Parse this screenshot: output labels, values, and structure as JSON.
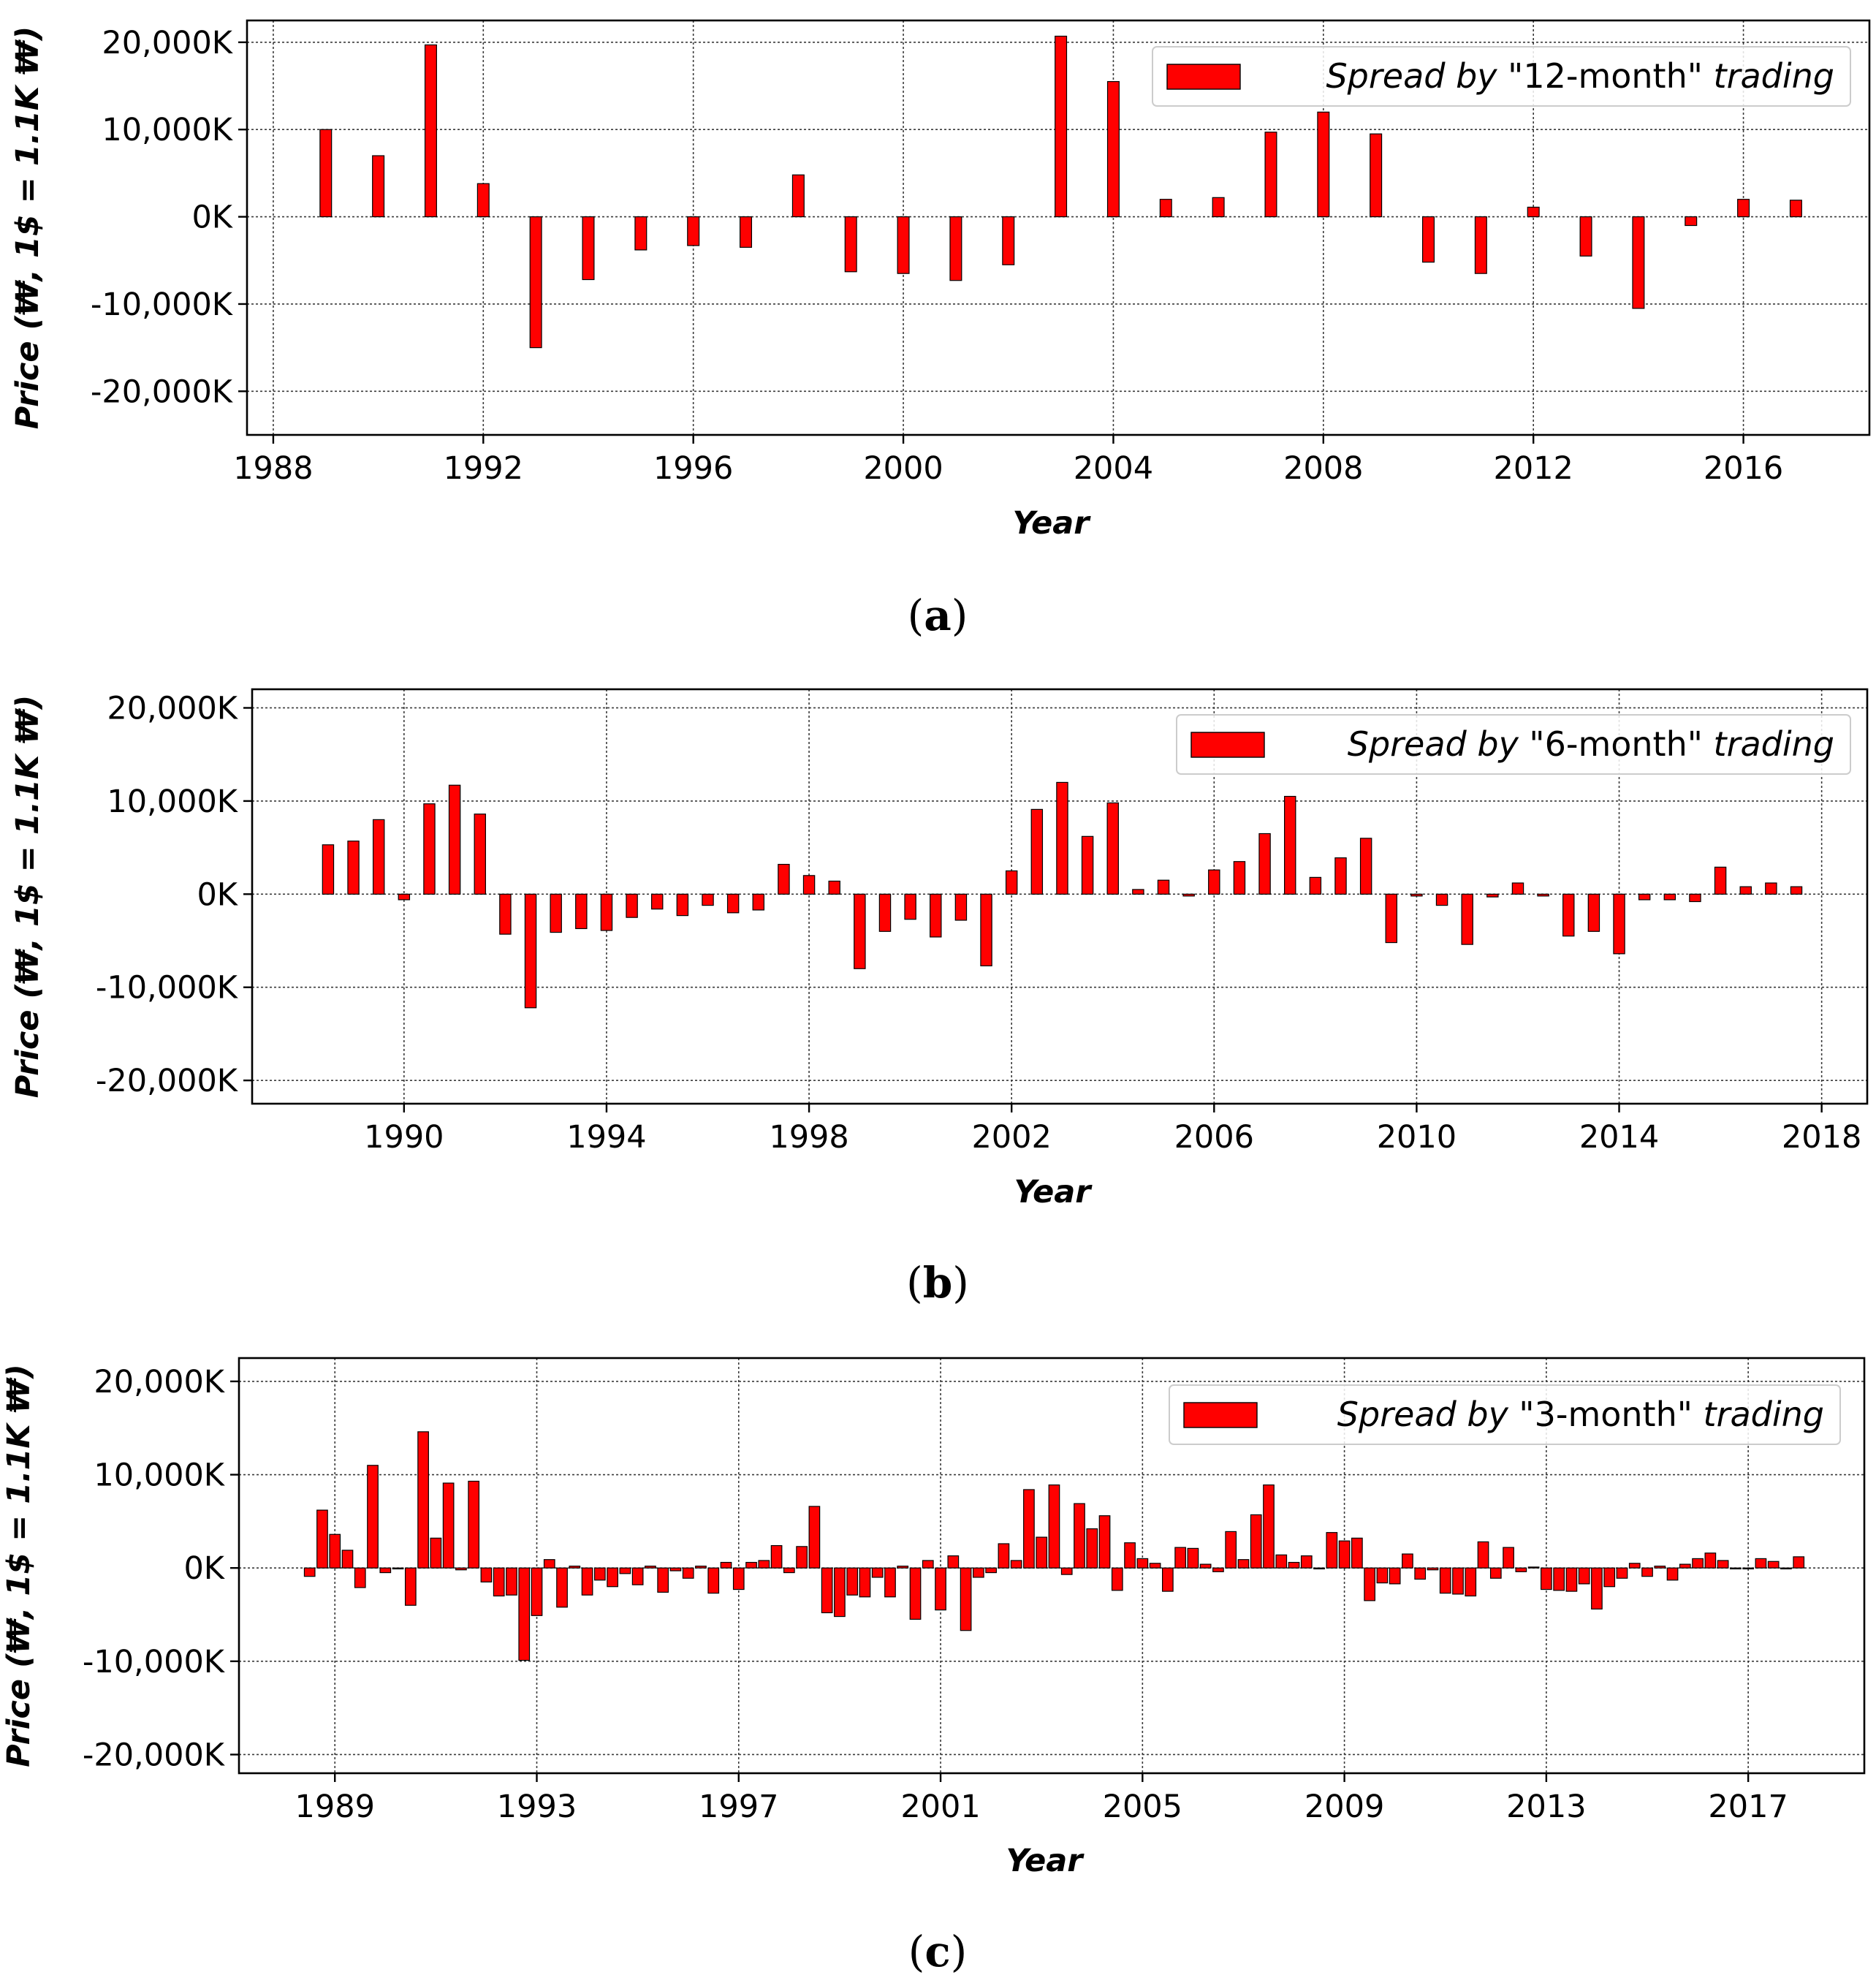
{
  "figure": {
    "panels": [
      {
        "caption_letter": "a"
      },
      {
        "caption_letter": "b"
      },
      {
        "caption_letter": "c"
      }
    ]
  },
  "colors": {
    "bar_fill": "#ff0000",
    "bar_edge": "#000000",
    "grid": "#3a3a3a",
    "axis": "#000000"
  },
  "chart_data": [
    {
      "type": "bar",
      "title": "",
      "xlabel": "Year",
      "ylabel": "Price (₩, 1$ = 1.1K ₩)",
      "legend": "Spread by \"12-month\" trading",
      "legend_parts": {
        "italic_pre": "Spread by",
        "plain": "\"12-month\"",
        "italic_post": "trading"
      },
      "legend_position": "top-right",
      "grid": true,
      "xlim": [
        1987.5,
        2018.4
      ],
      "ylim": [
        -25000,
        22500
      ],
      "xticks": [
        1988,
        1992,
        1996,
        2000,
        2004,
        2008,
        2012,
        2016
      ],
      "yticks": [
        20000,
        10000,
        0,
        -10000,
        -20000
      ],
      "ytick_labels": [
        "20,000K",
        "10,000K",
        "0K",
        "-10,000K",
        "-20,000K"
      ],
      "bar_width": 0.22,
      "x": [
        1989,
        1990,
        1991,
        1992,
        1993,
        1994,
        1995,
        1996,
        1997,
        1998,
        1999,
        2000,
        2001,
        2002,
        2003,
        2004,
        2005,
        2006,
        2007,
        2008,
        2009,
        2010,
        2011,
        2012,
        2013,
        2014,
        2015,
        2016,
        2017
      ],
      "values": [
        10000,
        7000,
        19700,
        3800,
        -15000,
        -7200,
        -3800,
        -3300,
        -3500,
        4800,
        -6300,
        -6500,
        -7300,
        -5500,
        20700,
        15500,
        2000,
        2200,
        9700,
        12000,
        9500,
        -5200,
        -6500,
        1100,
        -4500,
        -10500,
        -1000,
        2000,
        1900
      ]
    },
    {
      "type": "bar",
      "title": "",
      "xlabel": "Year",
      "ylabel": "Price (₩, 1$ = 1.1K ₩)",
      "legend": "Spread by \"6-month\" trading",
      "legend_parts": {
        "italic_pre": "Spread by",
        "plain": "\"6-month\"",
        "italic_post": "trading"
      },
      "legend_position": "top-right",
      "grid": true,
      "xlim": [
        1987.0,
        2018.9
      ],
      "ylim": [
        -22500,
        22000
      ],
      "xticks": [
        1990,
        1994,
        1998,
        2002,
        2006,
        2010,
        2014,
        2018
      ],
      "yticks": [
        20000,
        10000,
        0,
        -10000,
        -20000
      ],
      "ytick_labels": [
        "20,000K",
        "10,000K",
        "0K",
        "-10,000K",
        "-20,000K"
      ],
      "bar_width": 0.22,
      "x": [
        1988.5,
        1989,
        1989.5,
        1990,
        1990.5,
        1991,
        1991.5,
        1992,
        1992.5,
        1993,
        1993.5,
        1994,
        1994.5,
        1995,
        1995.5,
        1996,
        1996.5,
        1997,
        1997.5,
        1998,
        1998.5,
        1999,
        1999.5,
        2000,
        2000.5,
        2001,
        2001.5,
        2002,
        2002.5,
        2003,
        2003.5,
        2004,
        2004.5,
        2005,
        2005.5,
        2006,
        2006.5,
        2007,
        2007.5,
        2008,
        2008.5,
        2009,
        2009.5,
        2010,
        2010.5,
        2011,
        2011.5,
        2012,
        2012.5,
        2013,
        2013.5,
        2014,
        2014.5,
        2015,
        2015.5,
        2016,
        2016.5,
        2017,
        2017.5
      ],
      "values": [
        5300,
        5700,
        8000,
        -600,
        9700,
        11700,
        8600,
        -4300,
        -12200,
        -4100,
        -3700,
        -3900,
        -2500,
        -1600,
        -2300,
        -1200,
        -2000,
        -1700,
        3200,
        2000,
        1400,
        -8000,
        -4000,
        -2700,
        -4600,
        -2800,
        -7700,
        2500,
        9100,
        12000,
        6200,
        9800,
        500,
        1500,
        -200,
        2600,
        3500,
        6500,
        10500,
        1800,
        3900,
        6000,
        -5200,
        -200,
        -1200,
        -5400,
        -300,
        1200,
        -200,
        -4500,
        -4000,
        -6400,
        -600,
        -600,
        -800,
        2900,
        800,
        1200,
        800
      ]
    },
    {
      "type": "bar",
      "title": "",
      "xlabel": "Year",
      "ylabel": "Price (₩, 1$ = 1.1K ₩)",
      "legend": "Spread by \"3-month\" trading",
      "legend_parts": {
        "italic_pre": "Spread by",
        "plain": "\"3-month\"",
        "italic_post": "trading"
      },
      "legend_position": "top-right",
      "grid": true,
      "xlim": [
        1987.1,
        2019.3
      ],
      "ylim": [
        -22000,
        22500
      ],
      "xticks": [
        1989,
        1993,
        1997,
        2001,
        2005,
        2009,
        2013,
        2017
      ],
      "yticks": [
        20000,
        10000,
        0,
        -10000,
        -20000
      ],
      "ytick_labels": [
        "20,000K",
        "10,000K",
        "0K",
        "-10,000K",
        "-20,000K"
      ],
      "bar_width": 0.21,
      "x_start": 1988.5,
      "x_step": 0.25,
      "values": [
        -900,
        6200,
        3600,
        1900,
        -2100,
        11000,
        -500,
        -100,
        -4000,
        14600,
        3200,
        9100,
        -200,
        9300,
        -1500,
        -3000,
        -2900,
        -9900,
        -5100,
        900,
        -4200,
        200,
        -2900,
        -1300,
        -2000,
        -600,
        -1800,
        200,
        -2600,
        -300,
        -1100,
        200,
        -2700,
        600,
        -2300,
        600,
        800,
        2400,
        -500,
        2300,
        6600,
        -4800,
        -5200,
        -2900,
        -3100,
        -1000,
        -3100,
        200,
        -5500,
        800,
        -4500,
        1300,
        -6700,
        -1000,
        -500,
        2600,
        800,
        8400,
        3300,
        8900,
        -700,
        6900,
        4200,
        5600,
        -2400,
        2700,
        1000,
        500,
        -2500,
        2200,
        2100,
        400,
        -400,
        3900,
        900,
        5700,
        8900,
        1400,
        600,
        1300,
        -100,
        3800,
        2900,
        3200,
        -3500,
        -1600,
        -1700,
        1500,
        -1200,
        -200,
        -2700,
        -2800,
        -3000,
        2800,
        -1100,
        2200,
        -400,
        100,
        -2300,
        -2400,
        -2500,
        -1700,
        -4400,
        -2000,
        -1100,
        500,
        -900,
        200,
        -1300,
        400,
        1000,
        1600,
        800,
        -100,
        -100,
        1000,
        700,
        -100,
        1200
      ]
    }
  ]
}
